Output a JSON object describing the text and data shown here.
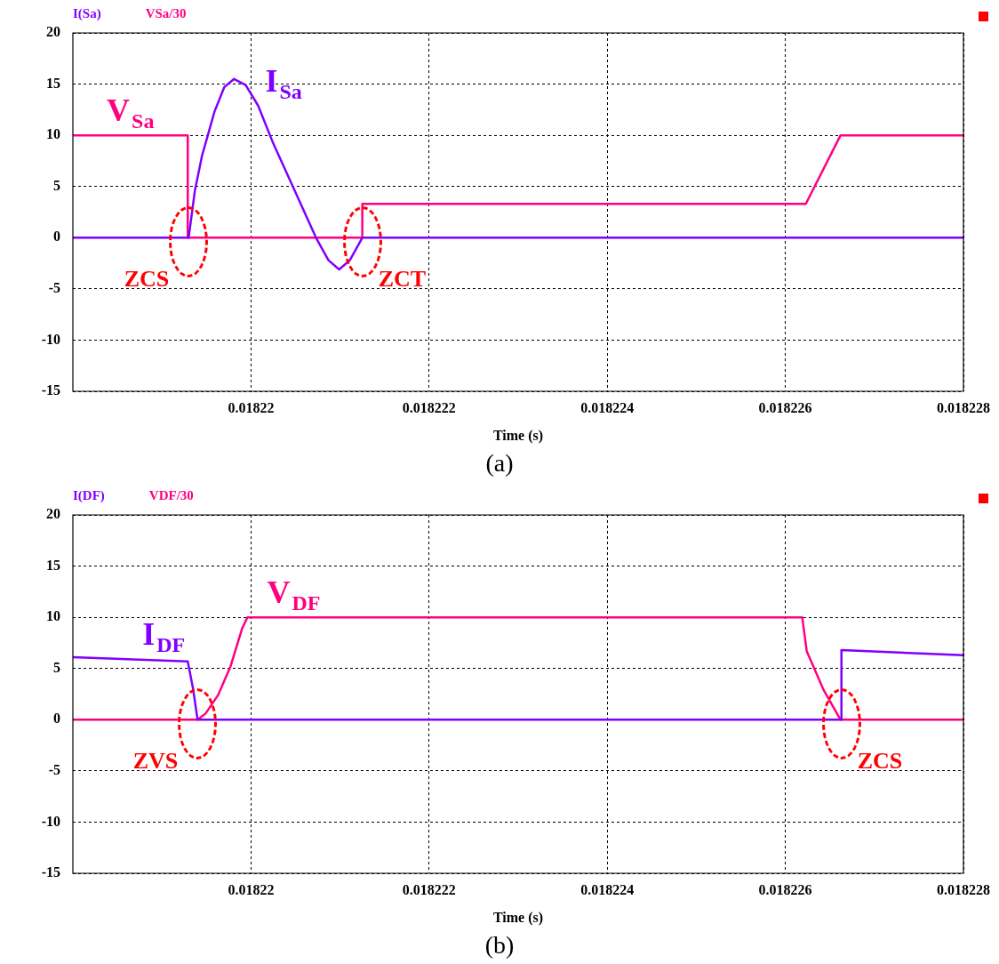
{
  "chart_data": [
    {
      "type": "line",
      "xlabel": "Time (s)",
      "xlim": [
        0.018218,
        0.018228
      ],
      "xticks": [
        0.01822,
        0.018222,
        0.018224,
        0.018226,
        0.018228
      ],
      "ylim": [
        -15,
        20
      ],
      "yticks": [
        -15,
        -10,
        -5,
        0,
        5,
        10,
        15,
        20
      ],
      "grid": true,
      "legend": "top left",
      "series": [
        {
          "name": "I(Sa)",
          "color": "#8000ff",
          "x": [
            0.018218,
            0.0182193,
            0.01821937,
            0.01821945,
            0.01821959,
            0.0182197,
            0.01821981,
            0.01821994,
            0.01822008,
            0.01822025,
            0.01822046,
            0.01822073,
            0.01822087,
            0.01822099,
            0.01822111,
            0.01822125,
            0.018228
          ],
          "values": [
            0,
            0,
            4.6,
            8,
            12.3,
            14.7,
            15.5,
            14.9,
            12.9,
            9.2,
            5.2,
            0,
            -2.2,
            -3.1,
            -2.2,
            0,
            0
          ]
        },
        {
          "name": "VSa/30",
          "color": "#ff0080",
          "x": [
            0.018218,
            0.01821929,
            0.01821929,
            0.01822125,
            0.01822125,
            0.01822623,
            0.01822662,
            0.018228
          ],
          "values": [
            10,
            10,
            0,
            0,
            3.3,
            3.3,
            10,
            10
          ]
        }
      ],
      "annotations": [
        {
          "text": "V$_{Sa}$",
          "x": 0.0182183,
          "y": 10
        },
        {
          "text": "I$_{Sa}$",
          "x": 0.01822008,
          "y": 12.9
        },
        {
          "text": "ZCS",
          "x": 0.0182193,
          "y": 0
        },
        {
          "text": "ZCT",
          "x": 0.01822125,
          "y": 0
        },
        "(a)"
      ]
    },
    {
      "type": "line",
      "xlabel": "Time (s)",
      "xlim": [
        0.018218,
        0.018228
      ],
      "xticks": [
        0.01822,
        0.018222,
        0.018224,
        0.018226,
        0.018228
      ],
      "ylim": [
        -15,
        20
      ],
      "yticks": [
        -15,
        -10,
        -5,
        0,
        5,
        10,
        15,
        20
      ],
      "grid": true,
      "legend": "top left",
      "series": [
        {
          "name": "I(DF)",
          "color": "#8000ff",
          "x": [
            0.018218,
            0.01821929,
            0.01821935,
            0.0182194,
            0.01822663,
            0.01822663,
            0.018228
          ],
          "values": [
            6.1,
            5.7,
            3,
            0,
            0,
            6.8,
            6.3
          ]
        },
        {
          "name": "VDF/30",
          "color": "#ff0080",
          "x": [
            0.018218,
            0.0182194,
            0.01821949,
            0.01821963,
            0.01821977,
            0.0182199,
            0.01821996,
            0.01822619,
            0.01822624,
            0.01822643,
            0.01822662,
            0.018228
          ],
          "values": [
            0,
            0,
            0.6,
            2.4,
            5.2,
            8.9,
            10,
            10,
            6.7,
            2.9,
            0,
            0
          ]
        }
      ],
      "annotations": [
        {
          "text": "I$_{DF}$",
          "x": 0.0182187,
          "y": 5.9
        },
        {
          "text": "V$_{DF}$",
          "x": 0.0182201,
          "y": 10
        },
        {
          "text": "ZVS",
          "x": 0.0182194,
          "y": 0
        },
        {
          "text": "ZCS",
          "x": 0.01822663,
          "y": 0
        },
        "(b)"
      ]
    }
  ]
}
